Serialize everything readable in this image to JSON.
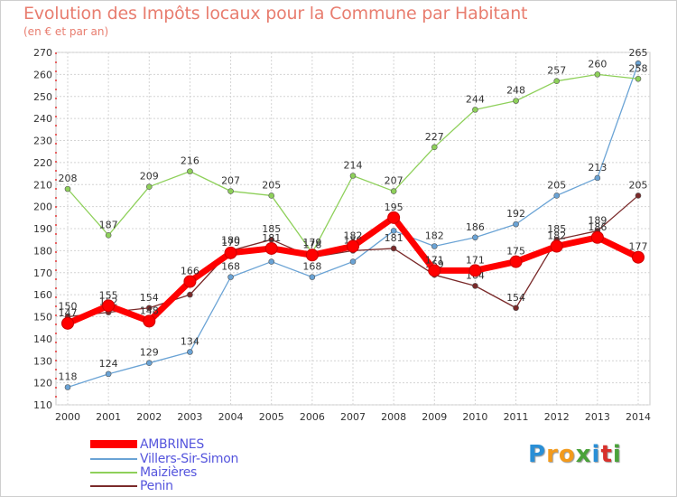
{
  "header": {
    "title": "Evolution des Impôts locaux pour la Commune par Habitant",
    "subtitle": "(en € et par an)"
  },
  "brand": {
    "letters": [
      "P",
      "r",
      "o",
      "x",
      "i",
      "t",
      "i"
    ],
    "colors": [
      "#2a8fd6",
      "#f39a1c",
      "#f39a1c",
      "#4aa23a",
      "#2a8fd6",
      "#d8312c",
      "#4aa23a"
    ]
  },
  "chart_data": {
    "type": "line",
    "x": [
      "2000",
      "2001",
      "2002",
      "2003",
      "2004",
      "2005",
      "2006",
      "2007",
      "2008",
      "2009",
      "2010",
      "2011",
      "2012",
      "2013",
      "2014"
    ],
    "ylim": [
      110,
      270
    ],
    "yticks": [
      "110",
      "120",
      "130",
      "140",
      "150",
      "160",
      "170",
      "180",
      "190",
      "200",
      "210",
      "220",
      "230",
      "240",
      "250",
      "260",
      "270"
    ],
    "grid": true,
    "legend": "bottom-left",
    "series": [
      {
        "name": "Villers-Sir-Simon",
        "color": "#6aa3d5",
        "values": [
          118,
          124,
          129,
          134,
          168,
          175,
          168,
          175,
          189,
          182,
          186,
          192,
          205,
          213,
          265
        ],
        "labels": [
          "118",
          "124",
          "129",
          "134",
          "168",
          "",
          "168",
          "",
          "",
          "182",
          "186",
          "192",
          "205",
          "213",
          "265"
        ]
      },
      {
        "name": "Maizières",
        "color": "#8ed05a",
        "values": [
          208,
          187,
          209,
          216,
          207,
          205,
          179,
          214,
          207,
          227,
          244,
          248,
          257,
          260,
          258
        ],
        "labels": [
          "208",
          "187",
          "209",
          "216",
          "207",
          "205",
          "179",
          "214",
          "207",
          "227",
          "244",
          "248",
          "257",
          "260",
          "258"
        ]
      },
      {
        "name": "Penin",
        "color": "#7a2a2a",
        "values": [
          150,
          152,
          154,
          160,
          180,
          185,
          177,
          180,
          181,
          169,
          164,
          154,
          185,
          189,
          205
        ],
        "labels": [
          "150",
          "152",
          "154",
          "",
          "180",
          "185",
          "",
          "180",
          "181",
          "169",
          "164",
          "154",
          "185",
          "189",
          "205"
        ]
      },
      {
        "name": "AMBRINES",
        "color": "#ff0000",
        "values": [
          147,
          155,
          148,
          166,
          179,
          181,
          178,
          182,
          195,
          171,
          171,
          175,
          182,
          186,
          177
        ],
        "labels": [
          "147",
          "155",
          "148",
          "166",
          "179",
          "181",
          "178",
          "182",
          "195",
          "171",
          "171",
          "175",
          "182",
          "186",
          "177"
        ]
      }
    ]
  },
  "legend": {
    "items": [
      {
        "name": "AMBRINES",
        "color": "#ff0000"
      },
      {
        "name": "Villers-Sir-Simon",
        "color": "#6aa3d5"
      },
      {
        "name": "Maizières",
        "color": "#8ed05a"
      },
      {
        "name": "Penin",
        "color": "#7a2a2a"
      }
    ]
  }
}
